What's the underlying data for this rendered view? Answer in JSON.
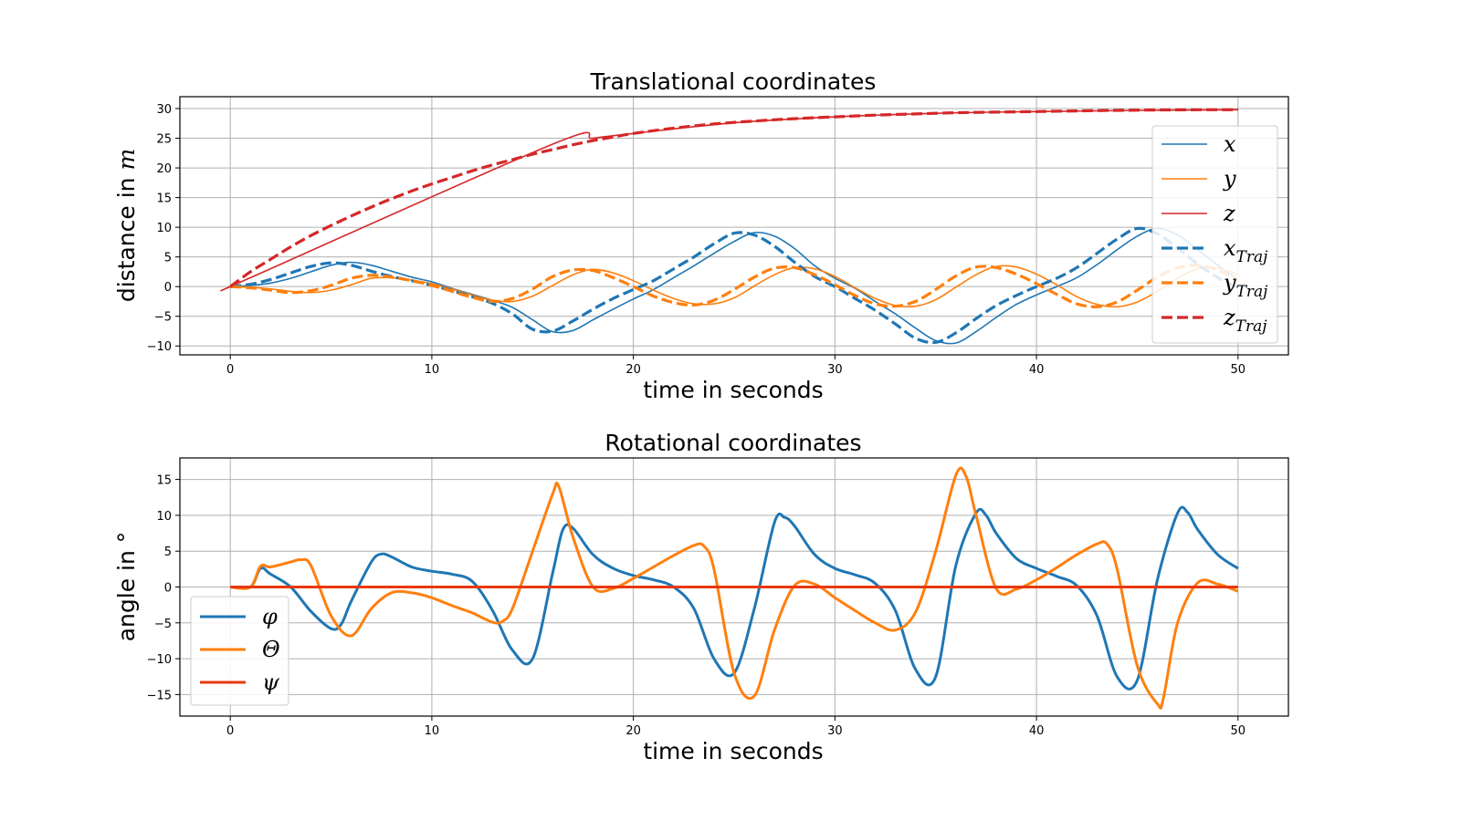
{
  "chart_data": [
    {
      "type": "line",
      "title": "Translational coordinates",
      "xlabel": "time in seconds",
      "ylabel": "distance in m",
      "ylabel_plain": "distance in ",
      "ylabel_math": "m",
      "xlim": [
        -2.5,
        52.5
      ],
      "ylim": [
        -11.5,
        32
      ],
      "xticks": [
        0,
        10,
        20,
        30,
        40,
        50
      ],
      "yticks": [
        30,
        25,
        20,
        15,
        10,
        5,
        0,
        -5,
        -10
      ],
      "grid": true,
      "legend_position": "right",
      "series": [
        {
          "name": "x",
          "color": "#1f77b4",
          "style": "solid",
          "x": [
            0,
            1,
            2,
            3,
            4,
            5,
            6,
            7,
            8,
            9,
            10,
            11,
            12,
            13,
            14,
            15,
            16,
            17,
            18,
            19,
            20,
            21,
            22,
            23,
            24,
            25,
            26,
            27,
            28,
            29,
            30,
            31,
            32,
            33,
            34,
            35,
            36,
            37,
            38,
            39,
            40,
            41,
            42,
            43,
            44,
            45,
            46,
            47,
            48,
            49,
            50
          ],
          "y": [
            0,
            0.2,
            0.6,
            1.4,
            2.5,
            3.6,
            4.1,
            3.6,
            2.6,
            1.6,
            0.8,
            -0.3,
            -1.3,
            -2.3,
            -3.5,
            -5.6,
            -7.6,
            -7.4,
            -5.6,
            -3.8,
            -2.1,
            -0.5,
            1.5,
            3.5,
            5.6,
            7.6,
            9.1,
            8.5,
            6.4,
            3.5,
            1.4,
            -0.3,
            -2.5,
            -4.6,
            -7,
            -9.1,
            -9.5,
            -7.6,
            -5.2,
            -3,
            -1.4,
            0,
            1.5,
            3.7,
            6.2,
            8.5,
            9.8,
            8.7,
            6.2,
            3.6,
            1.2
          ]
        },
        {
          "name": "y",
          "color": "#ff7f0e",
          "style": "solid",
          "x": [
            0,
            1,
            2,
            3,
            4,
            5,
            6,
            7,
            8,
            9,
            10,
            11,
            12,
            13,
            14,
            15,
            16,
            17,
            18,
            19,
            20,
            21,
            22,
            23,
            24,
            25,
            26,
            27,
            28,
            29,
            30,
            31,
            32,
            33,
            34,
            35,
            36,
            37,
            38,
            39,
            40,
            41,
            42,
            43,
            44,
            45,
            46,
            47,
            48,
            49,
            50
          ],
          "y": [
            0,
            -0.1,
            -0.4,
            -0.8,
            -1,
            -0.6,
            0.3,
            1.4,
            1.5,
            1.1,
            0.5,
            -0.4,
            -1.4,
            -2.3,
            -2.5,
            -1.6,
            0.2,
            2,
            2.9,
            2.3,
            1,
            -0.6,
            -2,
            -2.9,
            -2.9,
            -1.9,
            0.1,
            2,
            3.2,
            3,
            1.7,
            -0.2,
            -2,
            -3.2,
            -3.3,
            -2.2,
            -0.1,
            2,
            3.4,
            3.3,
            2.1,
            0.3,
            -1.7,
            -3,
            -3.4,
            -2.6,
            -0.8,
            1.4,
            3,
            3.1,
            2
          ]
        },
        {
          "name": "z",
          "color": "#d62728",
          "style": "solid",
          "x": [
            0,
            1,
            16,
            18,
            20,
            25,
            30,
            35,
            40,
            45,
            50
          ],
          "y": [
            0,
            1.5,
            24,
            25,
            25.8,
            27.6,
            28.6,
            29.2,
            29.5,
            29.7,
            29.8
          ]
        },
        {
          "name": "x_Traj",
          "color": "#1f77b4",
          "style": "dashed",
          "x": [
            0,
            1,
            2,
            3,
            4,
            5,
            6,
            7,
            8,
            9,
            10,
            11,
            12,
            13,
            14,
            15,
            16,
            17,
            18,
            19,
            20,
            21,
            22,
            23,
            24,
            25,
            26,
            27,
            28,
            29,
            30,
            31,
            32,
            33,
            34,
            35,
            36,
            37,
            38,
            39,
            40,
            41,
            42,
            43,
            44,
            45,
            46,
            47,
            48,
            49,
            50
          ],
          "y": [
            0,
            0.4,
            1.2,
            2.3,
            3.4,
            4,
            3.6,
            2.6,
            1.7,
            1,
            0.2,
            -0.7,
            -1.7,
            -2.8,
            -4.6,
            -7.2,
            -7.5,
            -5.8,
            -3.8,
            -2,
            -0.5,
            1,
            3,
            5,
            7.2,
            9,
            8.7,
            6.8,
            4.1,
            1.7,
            0,
            -2,
            -4,
            -6.3,
            -8.7,
            -9.4,
            -7.8,
            -5.4,
            -3.2,
            -1.5,
            0,
            1.4,
            3.2,
            5.6,
            8,
            9.8,
            8.9,
            6.5,
            3.8,
            1.5,
            -0.2
          ]
        },
        {
          "name": "y_Traj",
          "color": "#ff7f0e",
          "style": "dashed",
          "x": [
            0,
            1,
            2,
            3,
            4,
            5,
            6,
            7,
            8,
            9,
            10,
            11,
            12,
            13,
            14,
            15,
            16,
            17,
            18,
            19,
            20,
            21,
            22,
            23,
            24,
            25,
            26,
            27,
            28,
            29,
            30,
            31,
            32,
            33,
            34,
            35,
            36,
            37,
            38,
            39,
            40,
            41,
            42,
            43,
            44,
            45,
            46,
            47,
            48,
            49,
            50
          ],
          "y": [
            0,
            -0.2,
            -0.6,
            -1,
            -0.7,
            0.2,
            1.4,
            1.9,
            1.6,
            1,
            0.2,
            -0.8,
            -1.8,
            -2.5,
            -2,
            -0.4,
            1.7,
            2.8,
            2.7,
            1.5,
            0,
            -1.6,
            -2.7,
            -3.1,
            -2.3,
            -0.5,
            1.6,
            3.1,
            3.2,
            2,
            0.3,
            -1.5,
            -2.9,
            -3.3,
            -2.5,
            -0.5,
            1.8,
            3.3,
            3.2,
            2.1,
            0.5,
            -1.3,
            -2.9,
            -3.4,
            -2.6,
            -0.6,
            1.6,
            3.2,
            3.6,
            2.8,
            1
          ]
        },
        {
          "name": "z_Traj",
          "color": "#d62728",
          "style": "dashed",
          "x": [
            0,
            1,
            2,
            3,
            4,
            5,
            6,
            7,
            8,
            9,
            10,
            11,
            12,
            13,
            14,
            15,
            16,
            17,
            18,
            19,
            20,
            22,
            24,
            26,
            28,
            30,
            32,
            34,
            36,
            38,
            40,
            42,
            44,
            46,
            48,
            50
          ],
          "y": [
            0,
            2.5,
            4.6,
            6.7,
            8.6,
            10.3,
            11.9,
            13.4,
            14.8,
            16.1,
            17.3,
            18.4,
            19.5,
            20.5,
            21.4,
            22.3,
            23.1,
            23.9,
            24.6,
            25.2,
            25.8,
            26.7,
            27.4,
            27.9,
            28.3,
            28.6,
            28.9,
            29.1,
            29.3,
            29.4,
            29.5,
            29.6,
            29.7,
            29.75,
            29.8,
            29.8
          ]
        }
      ]
    },
    {
      "type": "line",
      "title": "Rotational coordinates",
      "xlabel": "time in seconds",
      "ylabel": "angle in °",
      "xlim": [
        -2.5,
        52.5
      ],
      "ylim": [
        -18,
        18
      ],
      "xticks": [
        0,
        10,
        20,
        30,
        40,
        50
      ],
      "yticks": [
        15,
        10,
        5,
        0,
        -5,
        -10,
        -15
      ],
      "grid": true,
      "legend_position": "lower left",
      "series": [
        {
          "name": "φ",
          "color": "#1f77b4",
          "style": "solid",
          "x": [
            0,
            1,
            1.5,
            2,
            3,
            4,
            5,
            5.5,
            6,
            7,
            7.5,
            8,
            9,
            10,
            11,
            12,
            13,
            14,
            15,
            16,
            16.5,
            17,
            18,
            19,
            20,
            21,
            22,
            23,
            24,
            25,
            26,
            27,
            27.5,
            28,
            29,
            30,
            31,
            32,
            33,
            34,
            35,
            36,
            37,
            37.5,
            38,
            39,
            40,
            41,
            42,
            43,
            44,
            45,
            46,
            47,
            47.5,
            48,
            49,
            50
          ],
          "y": [
            0,
            0,
            2.6,
            1.8,
            0,
            -3.4,
            -5.8,
            -5.2,
            -2,
            3.5,
            4.6,
            4.2,
            2.8,
            2.2,
            1.8,
            0.8,
            -3.2,
            -8.8,
            -10,
            2,
            8,
            8.2,
            4.5,
            2.6,
            1.6,
            1,
            0,
            -3,
            -10,
            -12,
            -3,
            9,
            9.7,
            8.5,
            4.5,
            2.6,
            1.7,
            0.5,
            -3.3,
            -11.5,
            -12.5,
            3,
            10.3,
            10,
            7.5,
            4,
            2.6,
            1.5,
            0.2,
            -4,
            -12.5,
            -13,
            1,
            10.3,
            10.4,
            8,
            4.5,
            2.6
          ]
        },
        {
          "name": "Θ",
          "color": "#ff7f0e",
          "style": "solid",
          "x": [
            0,
            1,
            1.5,
            2,
            3,
            3.5,
            4,
            5,
            6,
            7,
            8,
            9,
            10,
            11,
            12,
            13,
            13.5,
            14,
            15,
            16,
            16.3,
            17,
            18,
            19,
            20,
            21,
            22,
            23,
            23.5,
            24,
            25,
            26,
            27,
            28,
            29,
            30,
            31,
            32,
            33,
            34,
            35,
            36,
            36.5,
            37,
            38,
            39,
            40,
            41,
            42,
            43,
            43.5,
            44,
            45,
            46,
            46.3,
            47,
            48,
            49,
            50
          ],
          "y": [
            0,
            0,
            2.9,
            2.8,
            3.5,
            3.8,
            3,
            -4,
            -6.8,
            -3,
            -0.8,
            -0.8,
            -1.5,
            -2.6,
            -3.6,
            -4.9,
            -4.8,
            -3,
            5,
            13,
            14,
            7,
            0,
            -0.2,
            1.2,
            2.8,
            4.4,
            5.8,
            5.7,
            2.5,
            -12,
            -15.2,
            -6,
            0.2,
            0.4,
            -1.5,
            -3.3,
            -5,
            -6,
            -3.5,
            5,
            15.6,
            15.5,
            10,
            -0.2,
            -0.3,
            1,
            2.7,
            4.5,
            6,
            6,
            2.5,
            -11,
            -16.3,
            -15.5,
            -5,
            0.6,
            0.4,
            -0.6
          ]
        },
        {
          "name": "ψ",
          "color": "#e8380d",
          "style": "solid",
          "x": [
            0,
            50
          ],
          "y": [
            0,
            0
          ]
        }
      ]
    }
  ]
}
